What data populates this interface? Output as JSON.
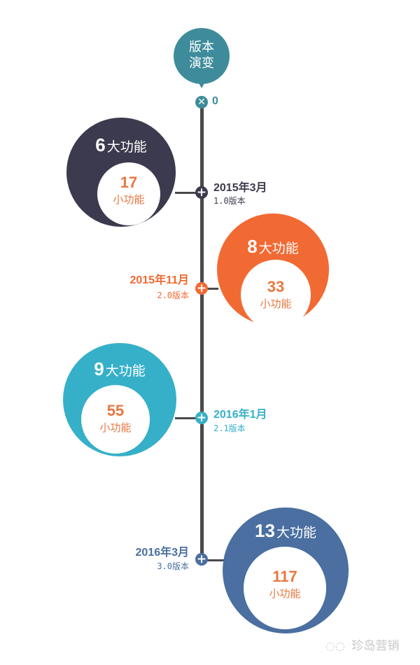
{
  "header": {
    "title_line1": "版本",
    "title_line2": "演变",
    "start_label": "0",
    "color": "#3e8c9b"
  },
  "milestones": [
    {
      "date": "2015年3月",
      "version": "1.0版本",
      "major": "6",
      "major_label": "大功能",
      "minor": "17",
      "minor_label": "小功能",
      "color": "#3c3a4e"
    },
    {
      "date": "2015年11月",
      "version": "2.0版本",
      "major": "8",
      "major_label": "大功能",
      "minor": "33",
      "minor_label": "小功能",
      "color": "#f26a33"
    },
    {
      "date": "2016年1月",
      "version": "2.1版本",
      "major": "9",
      "major_label": "大功能",
      "minor": "55",
      "minor_label": "小功能",
      "color": "#36b0c8"
    },
    {
      "date": "2016年3月",
      "version": "3.0版本",
      "major": "13",
      "major_label": "大功能",
      "minor": "117",
      "minor_label": "小功能",
      "color": "#4a6fa0"
    }
  ],
  "watermark": {
    "text": "珍岛营销",
    "icon": "wechat-icon"
  }
}
